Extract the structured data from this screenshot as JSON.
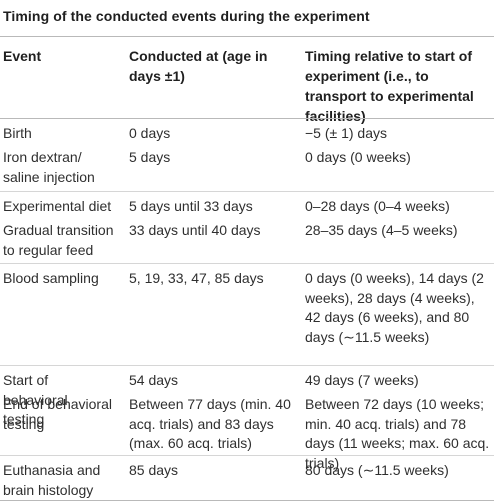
{
  "table": {
    "title": "Timing of the conducted events during the experiment",
    "headers": {
      "event": "Event",
      "conducted_at": "Conducted at (age in days ±1)",
      "timing": "Timing relative to start of experiment (i.e., to transport to experimental facilities)"
    },
    "rows": [
      {
        "event": "Birth",
        "conducted_at": "0 days",
        "timing": "−5 (± 1) days"
      },
      {
        "event": "Iron dextran/ saline injection",
        "conducted_at": "5 days",
        "timing": "0 days (0 weeks)"
      },
      {
        "event": "Experimental diet",
        "conducted_at": "5 days until 33 days",
        "timing": "0–28 days (0–4 weeks)"
      },
      {
        "event": "Gradual transition to regular feed",
        "conducted_at": "33 days until 40 days",
        "timing": "28–35 days (4–5 weeks)"
      },
      {
        "event": "Blood sampling",
        "conducted_at": "5, 19, 33, 47, 85 days",
        "timing": "0 days (0 weeks), 14 days (2 weeks), 28 days (4 weeks), 42 days (6 weeks), and 80 days (∼11.5 weeks)"
      },
      {
        "event": "Start of behavioral testing",
        "conducted_at": "54 days",
        "timing": "49 days (7 weeks)"
      },
      {
        "event": "End of behavioral testing",
        "conducted_at": "Between 77 days (min. 40 acq. trials) and 83 days (max. 60 acq. trials)",
        "timing": "Between 72 days (10 weeks; min. 40 acq. trials) and 78 days (11 weeks; max. 60 acq. trials)"
      },
      {
        "event": "Euthanasia and brain histology",
        "conducted_at": "85 days",
        "timing": "80 days (∼11.5 weeks)"
      }
    ]
  }
}
